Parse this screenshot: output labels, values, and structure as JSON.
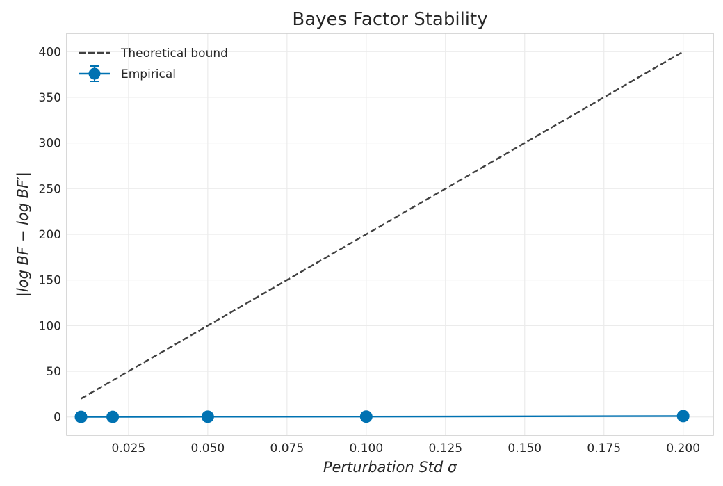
{
  "chart_data": {
    "type": "line",
    "title": "Bayes Factor Stability",
    "xlabel": "Perturbation Std σ",
    "ylabel": "|log BF − log BF′|",
    "xlim": [
      0.0055,
      0.2095
    ],
    "ylim": [
      -20,
      420
    ],
    "xticks": [
      0.025,
      0.05,
      0.075,
      0.1,
      0.125,
      0.15,
      0.175,
      0.2
    ],
    "xtick_labels": [
      "0.025",
      "0.050",
      "0.075",
      "0.100",
      "0.125",
      "0.150",
      "0.175",
      "0.200"
    ],
    "yticks": [
      0,
      50,
      100,
      150,
      200,
      250,
      300,
      350,
      400
    ],
    "ytick_labels": [
      "0",
      "50",
      "100",
      "150",
      "200",
      "250",
      "300",
      "350",
      "400"
    ],
    "grid": true,
    "legend_position": "top-left",
    "series": [
      {
        "name": "Theoretical bound",
        "style": "dashed",
        "color": "#404040",
        "x": [
          0.01,
          0.2
        ],
        "y": [
          20,
          400
        ]
      },
      {
        "name": "Empirical",
        "style": "solid-markers-errorbars",
        "color": "#0072b2",
        "x": [
          0.01,
          0.02,
          0.05,
          0.1,
          0.2
        ],
        "y": [
          0.1,
          0.1,
          0.3,
          0.4,
          1.0
        ]
      }
    ]
  }
}
